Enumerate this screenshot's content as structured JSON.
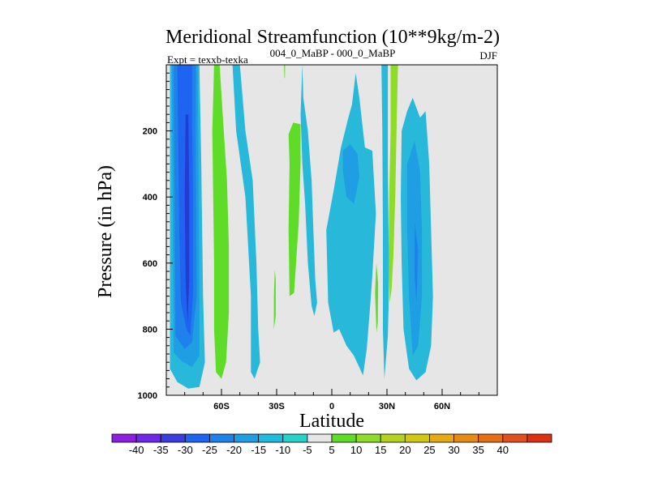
{
  "chart_data": {
    "type": "contour",
    "title": "Meridional Streamfunction (10**9kg/m-2)",
    "subtitle_left": "Expt = texxb-texka",
    "subtitle_center": "004_0_MaBP - 000_0_MaBP",
    "subtitle_right": "DJF",
    "xlabel": "Latitude",
    "ylabel": "Pressure (in hPa)",
    "xlim": [
      -90,
      90
    ],
    "ylim": [
      1000,
      0
    ],
    "x_ticks": [
      {
        "value": -60,
        "label": "60S"
      },
      {
        "value": -30,
        "label": "30S"
      },
      {
        "value": 0,
        "label": "0"
      },
      {
        "value": 30,
        "label": "30N"
      },
      {
        "value": 60,
        "label": "60N"
      }
    ],
    "y_ticks": [
      {
        "value": 200,
        "label": "200"
      },
      {
        "value": 400,
        "label": "400"
      },
      {
        "value": 600,
        "label": "600"
      },
      {
        "value": 800,
        "label": "800"
      },
      {
        "value": 1000,
        "label": "1000"
      }
    ],
    "background_color": "#e6e6e6",
    "regions": [
      {
        "name": "SH polar negative cell",
        "level": -10,
        "color": "#28b8da",
        "points": [
          [
            -88,
            0
          ],
          [
            -72,
            0
          ],
          [
            -71,
            300
          ],
          [
            -70,
            700
          ],
          [
            -69,
            900
          ],
          [
            -72,
            975
          ],
          [
            -78,
            980
          ],
          [
            -84,
            960
          ],
          [
            -88,
            920
          ]
        ]
      },
      {
        "name": "SH polar negative cell",
        "level": -15,
        "color": "#1f9ee4",
        "points": [
          [
            -87,
            0
          ],
          [
            -73,
            0
          ],
          [
            -72.5,
            300
          ],
          [
            -72,
            700
          ],
          [
            -72,
            880
          ],
          [
            -76,
            915
          ],
          [
            -82,
            895
          ],
          [
            -86,
            870
          ]
        ]
      },
      {
        "name": "SH polar negative cell",
        "level": -20,
        "color": "#1e82ea",
        "points": [
          [
            -86,
            0
          ],
          [
            -74,
            0
          ],
          [
            -74,
            300
          ],
          [
            -73.5,
            700
          ],
          [
            -76,
            840
          ],
          [
            -80,
            860
          ],
          [
            -85,
            820
          ]
        ]
      },
      {
        "name": "SH polar negative cell",
        "level": -25,
        "color": "#1e64f0",
        "points": [
          [
            -84,
            0
          ],
          [
            -76,
            0
          ],
          [
            -76,
            160
          ],
          [
            -75.5,
            400
          ],
          [
            -75.5,
            700
          ],
          [
            -77,
            820
          ],
          [
            -79,
            800
          ],
          [
            -82,
            720
          ],
          [
            -83,
            500
          ]
        ]
      },
      {
        "name": "SH polar core",
        "level": -30,
        "color": "#233cd2",
        "points": [
          [
            -79.5,
            150
          ],
          [
            -78,
            150
          ],
          [
            -77.5,
            400
          ],
          [
            -77.5,
            650
          ],
          [
            -78.5,
            780
          ],
          [
            -79.5,
            650
          ],
          [
            -80,
            400
          ]
        ]
      },
      {
        "name": "SH midlatitude positive band",
        "level": 10,
        "color": "#5fdc28",
        "points": [
          [
            -64,
            0
          ],
          [
            -61,
            0
          ],
          [
            -59,
            180
          ],
          [
            -57,
            350
          ],
          [
            -56,
            550
          ],
          [
            -56,
            750
          ],
          [
            -57.5,
            900
          ],
          [
            -60,
            950
          ],
          [
            -63,
            930
          ],
          [
            -64,
            800
          ],
          [
            -64,
            600
          ],
          [
            -64.5,
            400
          ],
          [
            -65,
            200
          ]
        ]
      },
      {
        "name": "SH subtropical negative cell",
        "level": -10,
        "color": "#28b8da",
        "points": [
          [
            -54,
            0
          ],
          [
            -50,
            0
          ],
          [
            -47,
            200
          ],
          [
            -43,
            350
          ],
          [
            -41,
            600
          ],
          [
            -40,
            800
          ],
          [
            -39,
            900
          ],
          [
            -42,
            950
          ],
          [
            -44,
            930
          ],
          [
            -44,
            700
          ],
          [
            -47,
            400
          ],
          [
            -52,
            200
          ]
        ]
      },
      {
        "name": "Tropical positive band",
        "level": 10,
        "color": "#5fdc28",
        "points": [
          [
            -23.5,
            210
          ],
          [
            -21,
            175
          ],
          [
            -17,
            180
          ],
          [
            -17,
            300
          ],
          [
            -18,
            480
          ],
          [
            -20.5,
            690
          ],
          [
            -23,
            700
          ],
          [
            -23.5,
            500
          ],
          [
            -23,
            300
          ]
        ]
      },
      {
        "name": "Tropical small cell",
        "level": 10,
        "color": "#5fdc28",
        "points": [
          [
            -31.5,
            700
          ],
          [
            -31,
            620
          ],
          [
            -30.5,
            650
          ],
          [
            -30.5,
            760
          ],
          [
            -31.5,
            800
          ]
        ]
      },
      {
        "name": "Equatorial negative cell",
        "level": -10,
        "color": "#28b8da",
        "points": [
          [
            -16,
            0
          ],
          [
            -15.5,
            100
          ],
          [
            -13,
            200
          ],
          [
            -11,
            350
          ],
          [
            -10,
            500
          ],
          [
            -9,
            650
          ],
          [
            -8,
            720
          ],
          [
            -9.5,
            760
          ],
          [
            -11,
            730
          ],
          [
            -13,
            600
          ],
          [
            -14.5,
            420
          ],
          [
            -16,
            300
          ],
          [
            -17,
            150
          ]
        ]
      },
      {
        "name": "Equatorial broad negative cell",
        "level": -10,
        "color": "#28b8da",
        "points": [
          [
            -3,
            500
          ],
          [
            1,
            380
          ],
          [
            5,
            250
          ],
          [
            9,
            160
          ],
          [
            11,
            120
          ],
          [
            13,
            25
          ],
          [
            15,
            100
          ],
          [
            18,
            250
          ],
          [
            22,
            260
          ],
          [
            24,
            450
          ],
          [
            22,
            640
          ],
          [
            21,
            720
          ],
          [
            19,
            860
          ],
          [
            17,
            940
          ],
          [
            12,
            880
          ],
          [
            8,
            850
          ],
          [
            4,
            800
          ],
          [
            1,
            810
          ],
          [
            -2,
            720
          ]
        ]
      },
      {
        "name": "Equatorial core",
        "level": -15,
        "color": "#1f9ee4",
        "points": [
          [
            6,
            260
          ],
          [
            10,
            240
          ],
          [
            14,
            270
          ],
          [
            15,
            340
          ],
          [
            12,
            420
          ],
          [
            8,
            400
          ],
          [
            6,
            320
          ]
        ]
      },
      {
        "name": "Subtropical positive tongue",
        "level": 10,
        "color": "#5fdc28",
        "points": [
          [
            23.5,
            690
          ],
          [
            24.2,
            600
          ],
          [
            25.2,
            660
          ],
          [
            25,
            780
          ],
          [
            24.3,
            810
          ]
        ]
      },
      {
        "name": "NH subtropical positive band",
        "level": 15,
        "color": "#8fdc28",
        "points": [
          [
            32,
            0
          ],
          [
            36,
            0
          ],
          [
            35.2,
            200
          ],
          [
            34.5,
            400
          ],
          [
            33.5,
            580
          ],
          [
            32.5,
            680
          ],
          [
            31.5,
            720
          ],
          [
            30.8,
            600
          ],
          [
            31.2,
            400
          ],
          [
            32,
            200
          ]
        ]
      },
      {
        "name": "NH narrow negative cell",
        "level": -10,
        "color": "#28b8da",
        "points": [
          [
            27,
            0
          ],
          [
            30.5,
            0
          ],
          [
            30.5,
            300
          ],
          [
            31,
            600
          ],
          [
            31,
            700
          ],
          [
            30.5,
            820
          ],
          [
            28.6,
            950
          ],
          [
            27.8,
            800
          ],
          [
            27.8,
            500
          ],
          [
            27.5,
            200
          ]
        ]
      },
      {
        "name": "NH midlatitude negative cell",
        "level": -10,
        "color": "#28b8da",
        "points": [
          [
            38,
            200
          ],
          [
            41,
            140
          ],
          [
            44,
            100
          ],
          [
            48,
            160
          ],
          [
            51,
            140
          ],
          [
            53,
            300
          ],
          [
            54,
            500
          ],
          [
            55,
            700
          ],
          [
            54,
            850
          ],
          [
            51,
            930
          ],
          [
            46,
            955
          ],
          [
            42,
            920
          ],
          [
            39,
            800
          ],
          [
            38,
            600
          ],
          [
            37.5,
            400
          ]
        ]
      },
      {
        "name": "NH midlatitude negative core",
        "level": -15,
        "color": "#1f9ee4",
        "points": [
          [
            41,
            300
          ],
          [
            45,
            230
          ],
          [
            48,
            320
          ],
          [
            49,
            500
          ],
          [
            49,
            700
          ],
          [
            47,
            850
          ],
          [
            44,
            880
          ],
          [
            42,
            700
          ],
          [
            41,
            500
          ]
        ]
      },
      {
        "name": "NH midlatitude negative core",
        "level": -20,
        "color": "#1e82ea",
        "points": [
          [
            45,
            480
          ],
          [
            47,
            560
          ],
          [
            46,
            720
          ],
          [
            45,
            640
          ]
        ]
      },
      {
        "name": "Upper tropical sliver",
        "level": 10,
        "color": "#5fdc28",
        "points": [
          [
            -26,
            0
          ],
          [
            -25.4,
            0
          ],
          [
            -25.5,
            40
          ],
          [
            -25.8,
            40
          ]
        ]
      }
    ],
    "colorbar": {
      "labels": [
        "-40",
        "-35",
        "-30",
        "-25",
        "-20",
        "-15",
        "-10",
        "-5",
        "5",
        "10",
        "15",
        "20",
        "25",
        "30",
        "35",
        "40"
      ],
      "colors": [
        "#8c1ede",
        "#6e28e6",
        "#3c3cdc",
        "#1e64f0",
        "#1e82ea",
        "#1f9ee4",
        "#1fbce0",
        "#28d2c8",
        "#e6e6e6",
        "#5fdc28",
        "#8fdc28",
        "#b4d21e",
        "#d2c814",
        "#e6aa14",
        "#e68c14",
        "#e66e14",
        "#e0501e",
        "#dc3214"
      ]
    }
  }
}
